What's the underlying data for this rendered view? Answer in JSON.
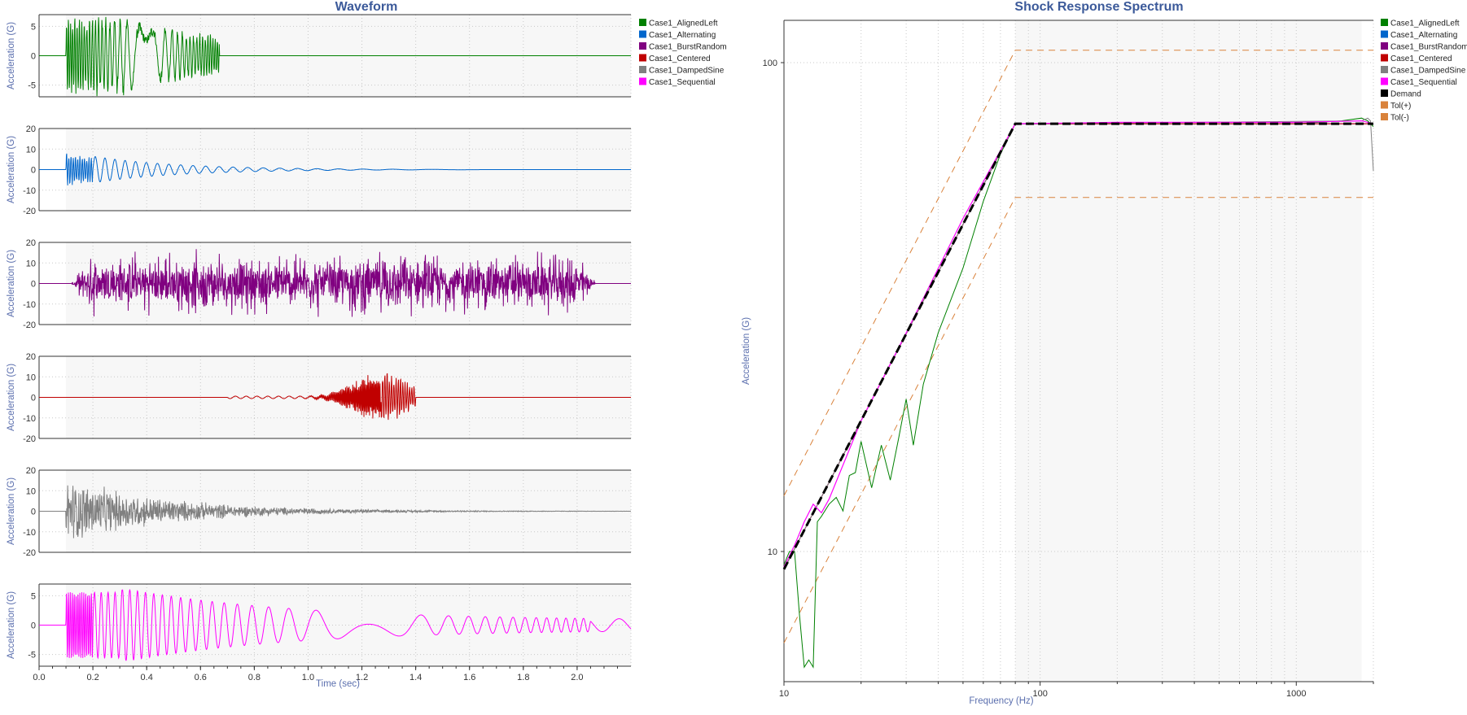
{
  "colors": {
    "AlignedLeft": "#008000",
    "Alternating": "#0066cc",
    "BurstRandom": "#800080",
    "Centered": "#c00000",
    "DampedSine": "#808080",
    "Sequential": "#ff00ff",
    "Demand": "#000000",
    "Tol": "#d9823b",
    "title": "#3c5a9a",
    "axisLabel": "#5b6fae",
    "plotBg": "#f7f7f7"
  },
  "waveform": {
    "title": "Waveform",
    "xlabel": "Time (sec)",
    "ylabel": "Acceleration (G)",
    "xticks": [
      "0.0",
      "0.2",
      "0.4",
      "0.6",
      "0.8",
      "1.0",
      "1.2",
      "1.4",
      "1.6",
      "1.8",
      "2.0"
    ],
    "legend": [
      "Case1_AlignedLeft",
      "Case1_Alternating",
      "Case1_BurstRandom",
      "Case1_Centered",
      "Case1_DampedSine",
      "Case1_Sequential"
    ],
    "panels": [
      {
        "name": "Case1_AlignedLeft",
        "ylim": [
          -7,
          7
        ],
        "yticks": [
          "5",
          "0",
          "-5"
        ]
      },
      {
        "name": "Case1_Alternating",
        "ylim": [
          -20,
          20
        ],
        "yticks": [
          "20",
          "10",
          "0",
          "-10",
          "-20"
        ]
      },
      {
        "name": "Case1_BurstRandom",
        "ylim": [
          -20,
          20
        ],
        "yticks": [
          "20",
          "10",
          "0",
          "-10",
          "-20"
        ]
      },
      {
        "name": "Case1_Centered",
        "ylim": [
          -20,
          20
        ],
        "yticks": [
          "20",
          "10",
          "0",
          "-10",
          "-20"
        ]
      },
      {
        "name": "Case1_DampedSine",
        "ylim": [
          -20,
          20
        ],
        "yticks": [
          "20",
          "10",
          "0",
          "-10",
          "-20"
        ]
      },
      {
        "name": "Case1_Sequential",
        "ylim": [
          -7,
          7
        ],
        "yticks": [
          "5",
          "0",
          "-5"
        ]
      }
    ]
  },
  "srs": {
    "title": "Shock Response Spectrum",
    "xlabel": "Frequency (Hz)",
    "ylabel": "Acceleration (G)",
    "xticks": [
      "10",
      "100",
      "1000"
    ],
    "yticks": [
      "100",
      "10"
    ],
    "legend": [
      "Case1_AlignedLeft",
      "Case1_Alternating",
      "Case1_BurstRandom",
      "Case1_Centered",
      "Case1_DampedSine",
      "Case1_Sequential",
      "Demand",
      "Tol(+)",
      "Tol(-)"
    ]
  },
  "chart_data": [
    {
      "type": "line",
      "title": "Waveform",
      "xlabel": "Time (sec)",
      "ylabel": "Acceleration (G)",
      "xlim": [
        0,
        2.2
      ],
      "series": [
        {
          "name": "Case1_AlignedLeft",
          "start": 0.1,
          "end": 0.67,
          "peak": 7.5
        },
        {
          "name": "Case1_Alternating",
          "start": 0.1,
          "end": 2.2,
          "peak": 10
        },
        {
          "name": "Case1_BurstRandom",
          "start": 0.12,
          "end": 2.07,
          "peak": 19
        },
        {
          "name": "Case1_Centered",
          "start": 0.7,
          "end": 1.4,
          "peak": 15
        },
        {
          "name": "Case1_DampedSine",
          "start": 0.1,
          "end": 2.2,
          "peak": 19
        },
        {
          "name": "Case1_Sequential",
          "start": 0.1,
          "end": 2.2,
          "peak": 6
        }
      ]
    },
    {
      "type": "line",
      "title": "Shock Response Spectrum",
      "xlabel": "Frequency (Hz)",
      "ylabel": "Acceleration (G)",
      "xscale": "log",
      "yscale": "log",
      "xlim": [
        10,
        2000
      ],
      "ylim": [
        5,
        130
      ],
      "series": [
        {
          "name": "Demand",
          "x": [
            10,
            80,
            2000
          ],
          "y": [
            9.2,
            75,
            75
          ]
        },
        {
          "name": "Tol(+)",
          "x": [
            10,
            80,
            2000
          ],
          "y": [
            13,
            106,
            106
          ]
        },
        {
          "name": "Tol(-)",
          "x": [
            10,
            80,
            2000
          ],
          "y": [
            6.5,
            53,
            53
          ]
        },
        {
          "name": "Case1_AlignedLeft",
          "x": [
            10,
            10.5,
            11,
            11.5,
            12,
            12.5,
            13,
            13.5,
            14,
            15,
            16,
            17,
            18,
            19,
            20,
            22,
            24,
            26,
            28,
            30,
            32,
            35,
            40,
            50,
            60,
            70,
            80,
            100,
            200,
            500,
            1000,
            1500,
            1800,
            1900,
            2000
          ],
          "y": [
            9.4,
            10,
            10,
            7.4,
            5.8,
            6,
            5.8,
            11.5,
            11.8,
            12.5,
            12.9,
            12.1,
            14.3,
            14.5,
            16.8,
            13.5,
            16.5,
            14,
            17,
            20.5,
            16.5,
            22,
            28,
            38,
            52,
            65,
            75,
            75,
            75,
            75,
            75,
            76,
            77,
            76,
            74
          ]
        },
        {
          "name": "Case1_Sequential",
          "x": [
            10,
            11,
            12,
            13,
            14,
            15,
            20,
            30,
            50,
            80,
            200,
            1000,
            1800,
            2000
          ],
          "y": [
            9.3,
            10.3,
            11.5,
            12.5,
            12,
            12.8,
            18.5,
            28,
            48,
            75,
            75.5,
            75.5,
            76,
            75
          ]
        },
        {
          "name": "Case1_Alternating",
          "x": [
            10,
            80,
            2000
          ],
          "y": [
            9.2,
            75,
            75
          ]
        },
        {
          "name": "Case1_BurstRandom",
          "x": [
            10,
            80,
            2000
          ],
          "y": [
            9.2,
            75,
            75
          ]
        },
        {
          "name": "Case1_Centered",
          "x": [
            10,
            80,
            2000
          ],
          "y": [
            9.2,
            75,
            75
          ]
        },
        {
          "name": "Case1_DampedSine",
          "x": [
            10,
            80,
            1800,
            1900,
            1950,
            2000
          ],
          "y": [
            9.2,
            75,
            76,
            77,
            76,
            60
          ]
        }
      ]
    }
  ]
}
